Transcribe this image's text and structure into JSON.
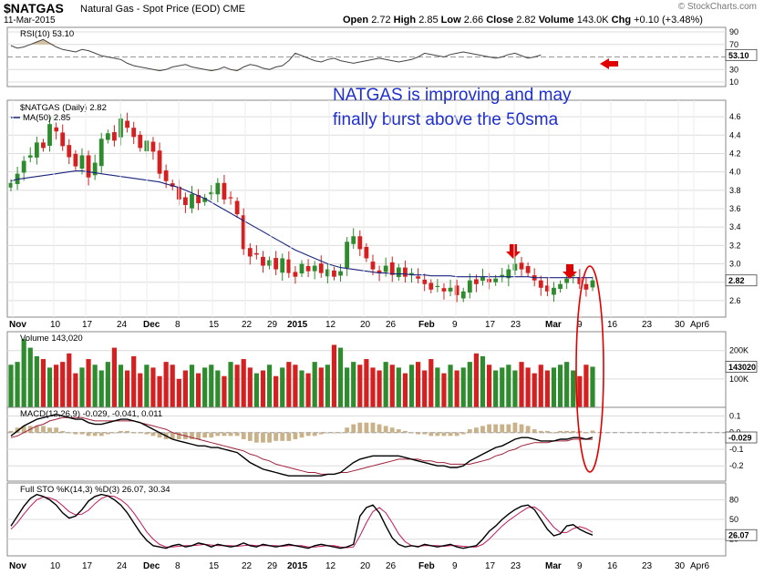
{
  "header": {
    "symbol": "$NATGAS",
    "description": "Natural Gas - Spot Price (EOD)",
    "exchange": "CME",
    "date": "11-Mar-2015",
    "ohlc_line": "Open 2.72  High 2.85  Low 2.66  Close 2.82  Volume 143.0K  Chg +0.10 (+3.48%)",
    "open_label": "Open",
    "open": "2.72",
    "high_label": "High",
    "high": "2.85",
    "low_label": "Low",
    "low": "2.66",
    "close_label": "Close",
    "close": "2.82",
    "volume_label": "Volume",
    "volume": "143.0K",
    "change_label": "Chg",
    "change": "+0.10 (+3.48%)",
    "brand": "© StockCharts.com"
  },
  "annotation": {
    "line1": "NATGAS is improving  and may",
    "line2": "finally burst above the 50sma"
  },
  "colors": {
    "up": "#2e8b2e",
    "down": "#d42020",
    "ma": "#1a237e",
    "annotation": "#1f2fd0",
    "marker": "#e00000",
    "macd_hist": "#c9b28a",
    "grid": "#dcdcdc"
  },
  "x_axis": {
    "labels": [
      "Nov",
      "10",
      "17",
      "24",
      "Dec",
      "8",
      "15",
      "22",
      "29",
      "2015",
      "12",
      "20",
      "26",
      "Feb",
      "9",
      "17",
      "23",
      "Mar",
      "9",
      "16",
      "23",
      "30",
      "Apr6"
    ],
    "bold": [
      "Nov",
      "Dec",
      "2015",
      "Feb",
      "Mar"
    ]
  },
  "chart_data": [
    {
      "type": "line",
      "title": "RSI(10) 53.10",
      "series": [
        {
          "name": "RSI(10)",
          "last": 53.1
        }
      ],
      "ylim": [
        10,
        90
      ],
      "ticks": [
        "90",
        "70",
        "30",
        "10"
      ],
      "last_label": "53.10",
      "values": [
        68,
        64,
        66,
        70,
        74,
        78,
        72,
        66,
        62,
        60,
        58,
        62,
        60,
        56,
        52,
        50,
        48,
        46,
        40,
        36,
        34,
        32,
        30,
        28,
        30,
        34,
        36,
        38,
        34,
        32,
        30,
        28,
        30,
        34,
        30,
        28,
        34,
        38,
        36,
        32,
        30,
        34,
        36,
        44,
        56,
        52,
        48,
        44,
        42,
        46,
        48,
        44,
        42,
        40,
        42,
        44,
        46,
        48,
        46,
        44,
        42,
        44,
        46,
        50,
        56,
        54,
        52,
        50,
        54,
        56,
        58,
        56,
        54,
        52,
        50,
        48,
        50,
        54,
        56,
        52,
        48,
        50,
        53.1
      ]
    },
    {
      "type": "candlestick",
      "title": "$NATGAS (Daily) 2.82",
      "series": [
        {
          "name": "$NATGAS (Daily)",
          "last": 2.82
        },
        {
          "name": "MA(50)",
          "last": 2.85
        }
      ],
      "ylim": [
        2.5,
        4.7
      ],
      "ticks": [
        "4.6",
        "4.4",
        "4.2",
        "4.0",
        "3.8",
        "3.6",
        "3.4",
        "3.2",
        "3.0",
        "2.8",
        "2.6"
      ],
      "last_label": "2.82",
      "closes": [
        3.88,
        3.98,
        4.12,
        4.18,
        4.32,
        4.26,
        4.52,
        4.44,
        4.28,
        4.16,
        4.06,
        4.18,
        3.94,
        4.1,
        4.36,
        4.42,
        4.34,
        4.58,
        4.48,
        4.38,
        4.26,
        4.34,
        4.22,
        3.98,
        3.9,
        3.84,
        3.7,
        3.64,
        3.76,
        3.66,
        3.72,
        3.78,
        3.88,
        3.7,
        3.72,
        3.54,
        3.16,
        3.08,
        3.1,
        2.98,
        3.04,
        2.94,
        3.06,
        2.9,
        2.86,
        3.0,
        2.92,
        2.98,
        2.9,
        2.94,
        2.86,
        2.92,
        3.24,
        3.3,
        3.16,
        3.06,
        2.94,
        2.9,
        2.98,
        2.88,
        2.96,
        2.86,
        2.9,
        2.84,
        2.78,
        2.72,
        2.76,
        2.7,
        2.74,
        2.66,
        2.7,
        2.82,
        2.78,
        2.86,
        2.8,
        2.84,
        2.88,
        2.94,
        3.0,
        2.94,
        2.9,
        2.82,
        2.74,
        2.7,
        2.74,
        2.78,
        2.84,
        2.88,
        2.78,
        2.72,
        2.82
      ],
      "ma50": [
        3.9,
        3.92,
        3.93,
        3.94,
        3.95,
        3.96,
        3.97,
        3.98,
        3.99,
        4.0,
        4.01,
        4.01,
        4.0,
        3.99,
        3.98,
        3.97,
        3.96,
        3.95,
        3.94,
        3.93,
        3.92,
        3.91,
        3.9,
        3.89,
        3.87,
        3.85,
        3.83,
        3.8,
        3.77,
        3.74,
        3.71,
        3.67,
        3.63,
        3.59,
        3.55,
        3.51,
        3.47,
        3.43,
        3.39,
        3.35,
        3.31,
        3.27,
        3.23,
        3.19,
        3.15,
        3.12,
        3.09,
        3.06,
        3.03,
        3.0,
        2.98,
        2.96,
        2.95,
        2.94,
        2.93,
        2.92,
        2.91,
        2.9,
        2.9,
        2.89,
        2.89,
        2.89,
        2.88,
        2.88,
        2.88,
        2.87,
        2.87,
        2.87,
        2.87,
        2.86,
        2.86,
        2.86,
        2.86,
        2.86,
        2.86,
        2.86,
        2.86,
        2.86,
        2.86,
        2.86,
        2.86,
        2.85,
        2.85,
        2.85,
        2.85,
        2.85,
        2.85,
        2.85,
        2.85,
        2.85,
        2.85
      ]
    },
    {
      "type": "bar",
      "title": "Volume 143,020",
      "series": [
        {
          "name": "Volume",
          "last": 143020
        }
      ],
      "ticks": [
        "200K",
        "100K"
      ],
      "ylim": [
        0,
        260000
      ],
      "last_label": "143020",
      "values": [
        150000,
        160000,
        240000,
        210000,
        180000,
        170000,
        140000,
        150000,
        160000,
        190000,
        120000,
        140000,
        170000,
        150000,
        130000,
        160000,
        210000,
        150000,
        130000,
        180000,
        120000,
        150000,
        140000,
        110000,
        160000,
        150000,
        100000,
        130000,
        150000,
        120000,
        140000,
        150000,
        130000,
        110000,
        160000,
        150000,
        170000,
        140000,
        120000,
        130000,
        150000,
        110000,
        140000,
        160000,
        150000,
        130000,
        120000,
        160000,
        140000,
        150000,
        220000,
        210000,
        140000,
        160000,
        150000,
        170000,
        140000,
        130000,
        160000,
        150000,
        140000,
        120000,
        150000,
        160000,
        130000,
        170000,
        140000,
        120000,
        150000,
        130000,
        140000,
        160000,
        190000,
        180000,
        150000,
        130000,
        140000,
        150000,
        130000,
        160000,
        140000,
        120000,
        150000,
        130000,
        140000,
        150000,
        160000,
        130000,
        110000,
        150000,
        143020
      ]
    },
    {
      "type": "line",
      "title": "MACD(12,26,9) -0.029, -0.041, 0.011",
      "series": [
        {
          "name": "MACD",
          "last": -0.029
        },
        {
          "name": "Signal",
          "last": -0.041
        },
        {
          "name": "Histogram",
          "last": 0.011
        }
      ],
      "ticks": [
        "0.1",
        "0.0",
        "-0.1",
        "-0.2"
      ],
      "ylim": [
        -0.27,
        0.13
      ],
      "last_label": "-0.029",
      "macd": [
        -0.02,
        0.01,
        0.04,
        0.06,
        0.08,
        0.09,
        0.1,
        0.11,
        0.1,
        0.09,
        0.08,
        0.08,
        0.06,
        0.05,
        0.05,
        0.06,
        0.07,
        0.08,
        0.08,
        0.07,
        0.06,
        0.04,
        0.02,
        0.0,
        -0.02,
        -0.04,
        -0.05,
        -0.06,
        -0.07,
        -0.08,
        -0.08,
        -0.09,
        -0.09,
        -0.1,
        -0.11,
        -0.12,
        -0.15,
        -0.18,
        -0.2,
        -0.22,
        -0.23,
        -0.24,
        -0.25,
        -0.26,
        -0.26,
        -0.26,
        -0.26,
        -0.26,
        -0.26,
        -0.25,
        -0.25,
        -0.24,
        -0.21,
        -0.18,
        -0.16,
        -0.15,
        -0.14,
        -0.14,
        -0.14,
        -0.14,
        -0.14,
        -0.15,
        -0.16,
        -0.17,
        -0.18,
        -0.19,
        -0.2,
        -0.2,
        -0.21,
        -0.21,
        -0.2,
        -0.17,
        -0.15,
        -0.13,
        -0.11,
        -0.09,
        -0.08,
        -0.06,
        -0.04,
        -0.03,
        -0.03,
        -0.04,
        -0.05,
        -0.05,
        -0.05,
        -0.04,
        -0.04,
        -0.03,
        -0.03,
        -0.04,
        -0.029
      ],
      "signal": [
        -0.03,
        -0.02,
        0.0,
        0.02,
        0.04,
        0.05,
        0.07,
        0.08,
        0.09,
        0.09,
        0.09,
        0.09,
        0.08,
        0.07,
        0.07,
        0.07,
        0.07,
        0.07,
        0.07,
        0.07,
        0.06,
        0.05,
        0.04,
        0.03,
        0.02,
        0.0,
        -0.01,
        -0.02,
        -0.03,
        -0.04,
        -0.05,
        -0.06,
        -0.07,
        -0.08,
        -0.09,
        -0.1,
        -0.11,
        -0.13,
        -0.14,
        -0.16,
        -0.17,
        -0.19,
        -0.2,
        -0.21,
        -0.22,
        -0.23,
        -0.24,
        -0.24,
        -0.25,
        -0.25,
        -0.25,
        -0.24,
        -0.24,
        -0.23,
        -0.22,
        -0.21,
        -0.2,
        -0.19,
        -0.18,
        -0.17,
        -0.16,
        -0.16,
        -0.16,
        -0.16,
        -0.17,
        -0.17,
        -0.18,
        -0.18,
        -0.19,
        -0.19,
        -0.19,
        -0.19,
        -0.18,
        -0.17,
        -0.16,
        -0.14,
        -0.13,
        -0.11,
        -0.1,
        -0.08,
        -0.07,
        -0.06,
        -0.06,
        -0.06,
        -0.05,
        -0.05,
        -0.05,
        -0.04,
        -0.04,
        -0.04,
        -0.041
      ]
    },
    {
      "type": "line",
      "title": "Full STO %K(14,3) %D(3) 26.07, 30.34",
      "series": [
        {
          "name": "%K(14,3)",
          "last": 26.07
        },
        {
          "name": "%D(3)",
          "last": 30.34
        }
      ],
      "ticks": [
        "80",
        "50",
        "20"
      ],
      "ylim": [
        0,
        100
      ],
      "last_label": "26.07",
      "k": [
        40,
        55,
        70,
        82,
        88,
        85,
        80,
        72,
        60,
        52,
        55,
        65,
        78,
        85,
        88,
        86,
        80,
        72,
        60,
        45,
        30,
        18,
        10,
        8,
        6,
        10,
        12,
        8,
        10,
        14,
        12,
        8,
        12,
        10,
        8,
        10,
        14,
        10,
        8,
        12,
        10,
        8,
        10,
        12,
        10,
        8,
        6,
        10,
        12,
        10,
        8,
        6,
        8,
        12,
        55,
        68,
        72,
        60,
        40,
        22,
        12,
        8,
        10,
        8,
        12,
        10,
        8,
        10,
        12,
        8,
        6,
        8,
        10,
        20,
        32,
        40,
        50,
        58,
        65,
        70,
        72,
        65,
        50,
        35,
        25,
        28,
        40,
        42,
        35,
        30,
        26.07
      ],
      "d": [
        35,
        45,
        58,
        70,
        80,
        84,
        83,
        79,
        71,
        62,
        57,
        58,
        64,
        74,
        82,
        86,
        85,
        80,
        72,
        60,
        46,
        31,
        20,
        12,
        8,
        8,
        9,
        10,
        10,
        11,
        12,
        11,
        10,
        10,
        10,
        9,
        10,
        11,
        10,
        10,
        10,
        10,
        9,
        10,
        10,
        10,
        8,
        8,
        9,
        10,
        10,
        8,
        7,
        8,
        25,
        45,
        62,
        68,
        60,
        45,
        28,
        16,
        10,
        9,
        10,
        10,
        10,
        9,
        10,
        10,
        9,
        8,
        8,
        12,
        20,
        30,
        40,
        48,
        55,
        62,
        68,
        69,
        62,
        50,
        38,
        30,
        30,
        36,
        39,
        36,
        30.34
      ]
    }
  ]
}
